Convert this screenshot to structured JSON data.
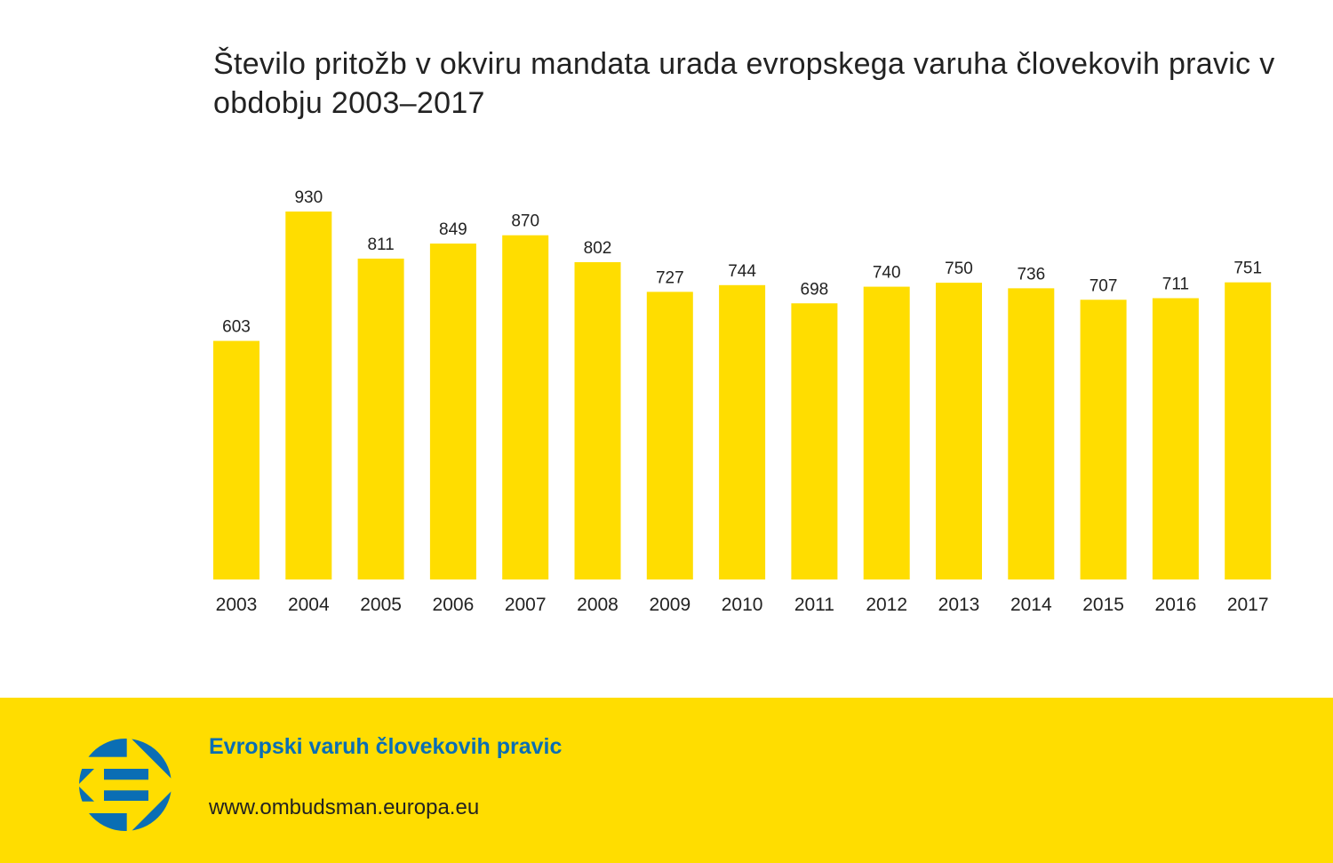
{
  "chart_data": {
    "type": "bar",
    "title": "Število pritožb v okviru mandata urada evropskega varuha človekovih pravic v obdobju 2003–2017",
    "categories": [
      "2003",
      "2004",
      "2005",
      "2006",
      "2007",
      "2008",
      "2009",
      "2010",
      "2011",
      "2012",
      "2013",
      "2014",
      "2015",
      "2016",
      "2017"
    ],
    "values": [
      603,
      930,
      811,
      849,
      870,
      802,
      727,
      744,
      698,
      740,
      750,
      736,
      707,
      711,
      751
    ],
    "xlabel": "",
    "ylabel": "",
    "ylim": [
      0,
      930
    ],
    "grid": false,
    "bar_color": "#FFDD00"
  },
  "footer": {
    "organization": "Evropski varuh človekovih pravic",
    "url": "www.ombudsman.europa.eu",
    "accent_color": "#0a6eb4",
    "background_color": "#FFDD00"
  }
}
